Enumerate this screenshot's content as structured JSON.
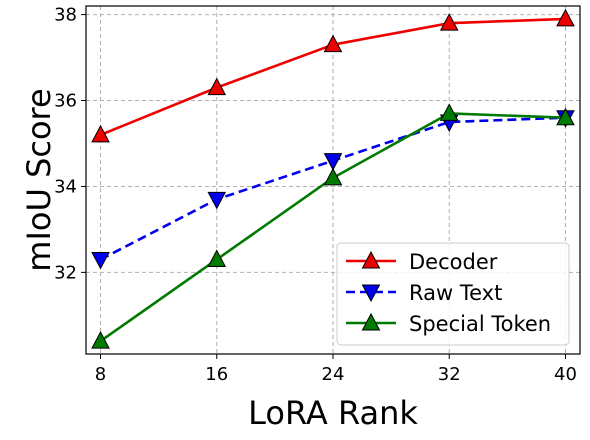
{
  "chart_data": {
    "type": "line",
    "title": "",
    "xlabel": "LoRA Rank",
    "ylabel": "mIoU Score",
    "x": [
      8,
      16,
      24,
      32,
      40
    ],
    "x_ticks": [
      "8",
      "16",
      "24",
      "32",
      "40"
    ],
    "y_ticks": [
      "32",
      "34",
      "36",
      "38"
    ],
    "y_tick_values": [
      32,
      34,
      36,
      38
    ],
    "xlim": [
      7,
      41
    ],
    "ylim": [
      30.1,
      38.2
    ],
    "grid": true,
    "legend_position": "bottom-right",
    "series": [
      {
        "name": "Decoder",
        "values": [
          35.2,
          36.3,
          37.3,
          37.8,
          37.9
        ],
        "color": "#ee0000",
        "line_style": "solid",
        "marker": "triangle-up"
      },
      {
        "name": "Raw Text",
        "values": [
          32.3,
          33.7,
          34.6,
          35.5,
          35.6
        ],
        "color": "#0000ee",
        "line_style": "dashed",
        "marker": "triangle-down"
      },
      {
        "name": "Special Token",
        "values": [
          30.4,
          32.3,
          34.2,
          35.7,
          35.6
        ],
        "color": "#007a00",
        "line_style": "solid",
        "marker": "triangle-up"
      }
    ]
  }
}
